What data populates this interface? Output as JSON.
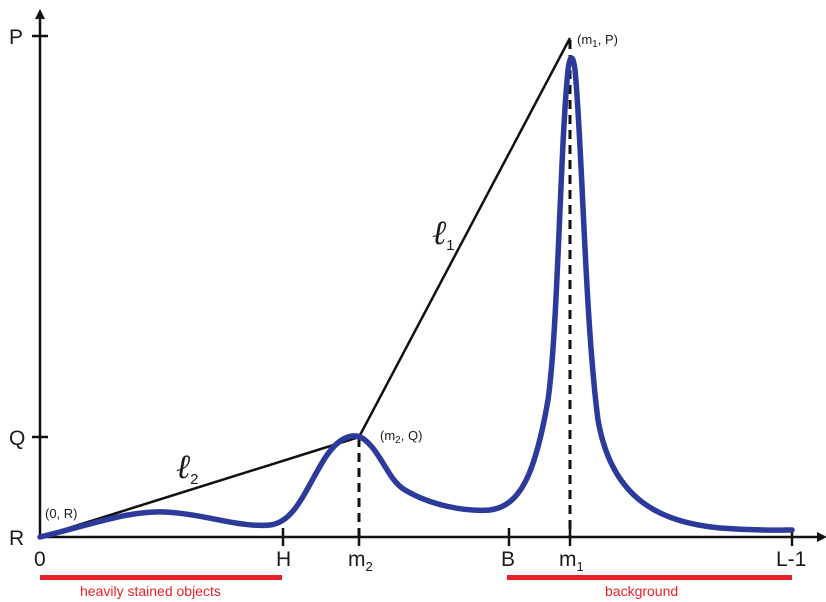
{
  "axis": {
    "y_labels": {
      "P": "P",
      "Q": "Q",
      "R": "R"
    },
    "x_labels": {
      "zero": "0",
      "H": "H",
      "m2_base": "m",
      "m2_sub": "2",
      "B": "B",
      "m1_base": "m",
      "m1_sub": "1",
      "L1": "L-1"
    }
  },
  "points": {
    "origin": "(0, R)",
    "m2Q": {
      "open": "(m",
      "sub": "2",
      "close": ", Q)"
    },
    "m1P": {
      "open": "(m",
      "sub": "1",
      "close": ", P)"
    }
  },
  "lines": {
    "l1": {
      "symbol": "ℓ",
      "sub": "1"
    },
    "l2": {
      "symbol": "ℓ",
      "sub": "2"
    }
  },
  "ranges": {
    "stained": "heavily stained objects",
    "background": "background"
  },
  "colors": {
    "curve": "#2b3a9b",
    "lines": "#111111",
    "range_bar": "#e8202a"
  }
}
